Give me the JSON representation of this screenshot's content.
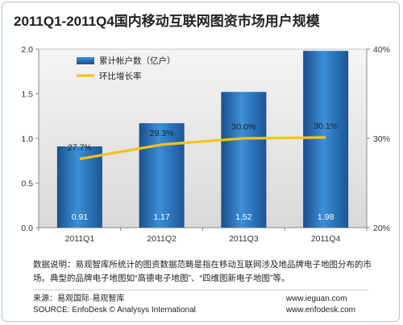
{
  "title": "2011Q1-2011Q4国内移动互联网图资市场用户规模",
  "chart_data": {
    "type": "bar",
    "categories": [
      "2011Q1",
      "2011Q2",
      "2011Q3",
      "2011Q4"
    ],
    "series": [
      {
        "name": "累计帐户数（亿户）",
        "type": "bar",
        "axis": "left",
        "values": [
          0.91,
          1.17,
          1.52,
          1.98
        ],
        "labels": [
          "0.91",
          "1.17",
          "1.52",
          "1.98"
        ]
      },
      {
        "name": "环比增长率",
        "type": "line",
        "axis": "right",
        "values": [
          27.7,
          29.3,
          30.0,
          30.1
        ],
        "labels": [
          "27.7%",
          "29.3%",
          "30.0%",
          "30.1%"
        ]
      }
    ],
    "y_left": {
      "range": [
        0,
        2.0
      ],
      "ticks": [
        "0.0",
        "0.5",
        "1.0",
        "1.5",
        "2.0"
      ]
    },
    "y_right": {
      "range": [
        20,
        40
      ],
      "ticks": [
        "20%",
        "30%",
        "40%"
      ]
    },
    "legend_position": "top-left",
    "grid": false,
    "colors": {
      "bar_top": "#2b78c5",
      "bar_bottom": "#1b4f8a",
      "line": "#f6c21a",
      "plot_bg": "#e5e5e5"
    }
  },
  "note": "数据说明：易观智库所统计的图资数据范畴是指在移动互联网涉及地品牌电子地图分布的市场。典型的品牌电子地图如“高德电子地图”、“四维图新电子地图”等。",
  "source_cn": "来源：易观国际·易观智库",
  "source_en": "SOURCE: EnfoDesk © Analysys International",
  "url1": "www.ieguan.com",
  "url2": "www.enfodesk.com"
}
